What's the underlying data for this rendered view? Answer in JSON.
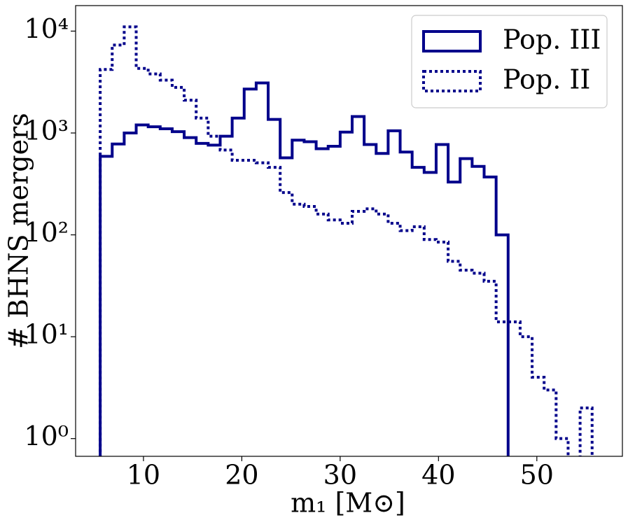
{
  "chart_data": {
    "type": "histogram",
    "x_label": "m₁ [M⊙]",
    "y_label": "# BHNS mergers",
    "log_y": true,
    "legend": "upper right",
    "bins": [
      5.6,
      6.82,
      8.04,
      9.26,
      10.48,
      11.7,
      12.92,
      14.14,
      15.36,
      16.58,
      17.8,
      19.02,
      20.24,
      21.46,
      22.68,
      23.9,
      25.12,
      26.34,
      27.56,
      28.78,
      30.0,
      31.22,
      32.44,
      33.66,
      34.88,
      36.1,
      37.32,
      38.54,
      39.76,
      40.98,
      42.2,
      43.42,
      44.64,
      45.86,
      47.08,
      48.3,
      49.52,
      50.74,
      51.96,
      53.18,
      54.4,
      55.62
    ],
    "series": [
      {
        "name": "Pop. III",
        "color": "#00008b",
        "style": "solid",
        "values": [
          590,
          780,
          1000,
          1200,
          1150,
          1100,
          1030,
          900,
          790,
          760,
          930,
          1400,
          2700,
          3100,
          1360,
          570,
          850,
          820,
          700,
          740,
          1020,
          1450,
          770,
          630,
          1050,
          650,
          460,
          410,
          770,
          330,
          560,
          470,
          370,
          100,
          0,
          0,
          0,
          0,
          0,
          0,
          0
        ]
      },
      {
        "name": "Pop. II",
        "color": "#00008b",
        "style": "dotted",
        "values": [
          4200,
          7300,
          11000,
          4300,
          3800,
          3300,
          2800,
          2100,
          1400,
          930,
          680,
          540,
          540,
          510,
          460,
          260,
          200,
          190,
          160,
          140,
          130,
          170,
          180,
          160,
          130,
          110,
          120,
          90,
          85,
          55,
          45,
          42,
          35,
          14,
          14,
          10,
          4,
          3,
          1,
          0,
          2
        ]
      }
    ],
    "xlim": [
      3.1,
      58.7
    ],
    "xticks": [
      10,
      20,
      30,
      40,
      50
    ],
    "ylim": [
      0.67,
      17800
    ],
    "yticks": [
      {
        "value": 1,
        "label": "10⁰"
      },
      {
        "value": 10,
        "label": "10¹"
      },
      {
        "value": 100,
        "label": "10²"
      },
      {
        "value": 1000,
        "label": "10³"
      },
      {
        "value": 10000,
        "label": "10⁴"
      }
    ]
  }
}
